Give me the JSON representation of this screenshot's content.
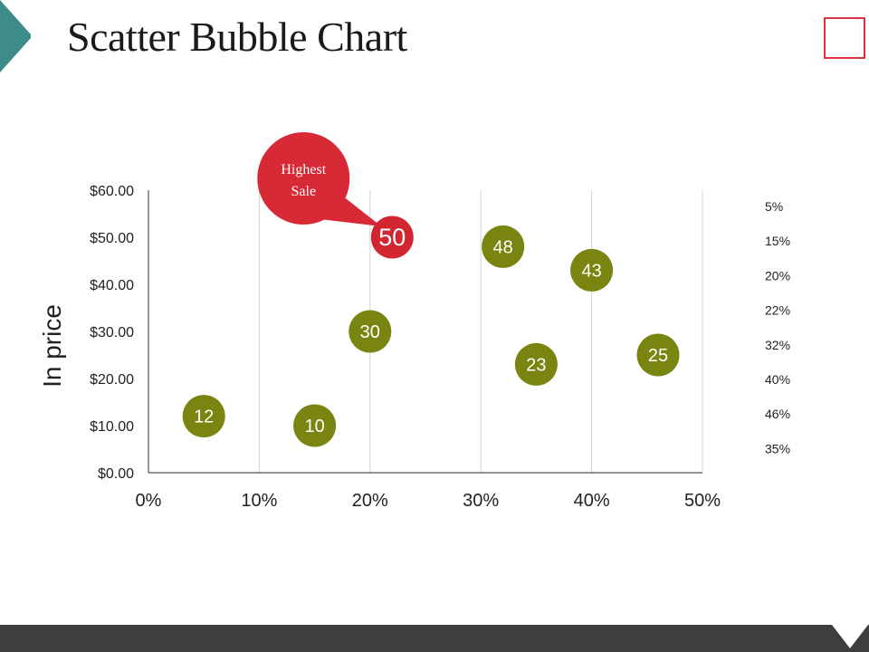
{
  "page": {
    "title": "Scatter Bubble Chart"
  },
  "colors": {
    "accent_teal": "#3d8c8a",
    "bubble": "#7a8410",
    "highlight": "#d1252f",
    "callout": "#d82a36",
    "footer": "#3e3e40",
    "frame": "#d6343f"
  },
  "chart_data": {
    "type": "scatter",
    "title": "",
    "xlabel": "",
    "ylabel": "In price",
    "xlim": [
      0,
      50
    ],
    "ylim": [
      0,
      60
    ],
    "x_ticks": [
      "0%",
      "10%",
      "20%",
      "30%",
      "40%",
      "50%"
    ],
    "y_ticks": [
      "$0.00",
      "$10.00",
      "$20.00",
      "$30.00",
      "$40.00",
      "$50.00",
      "$60.00"
    ],
    "grid": "vertical",
    "points": [
      {
        "x": 5,
        "y": 12,
        "label": "12",
        "highlight": false
      },
      {
        "x": 15,
        "y": 10,
        "label": "10",
        "highlight": false
      },
      {
        "x": 20,
        "y": 30,
        "label": "30",
        "highlight": false
      },
      {
        "x": 22,
        "y": 50,
        "label": "50",
        "highlight": true
      },
      {
        "x": 32,
        "y": 48,
        "label": "48",
        "highlight": false
      },
      {
        "x": 35,
        "y": 23,
        "label": "23",
        "highlight": false
      },
      {
        "x": 40,
        "y": 43,
        "label": "43",
        "highlight": false
      },
      {
        "x": 46,
        "y": 25,
        "label": "25",
        "highlight": false
      }
    ],
    "legend": [
      "5%",
      "15%",
      "20%",
      "22%",
      "32%",
      "40%",
      "46%",
      "35%"
    ],
    "legend_position": "right",
    "annotation": {
      "lines": [
        "Highest",
        "Sale"
      ],
      "target_label": "50"
    }
  }
}
